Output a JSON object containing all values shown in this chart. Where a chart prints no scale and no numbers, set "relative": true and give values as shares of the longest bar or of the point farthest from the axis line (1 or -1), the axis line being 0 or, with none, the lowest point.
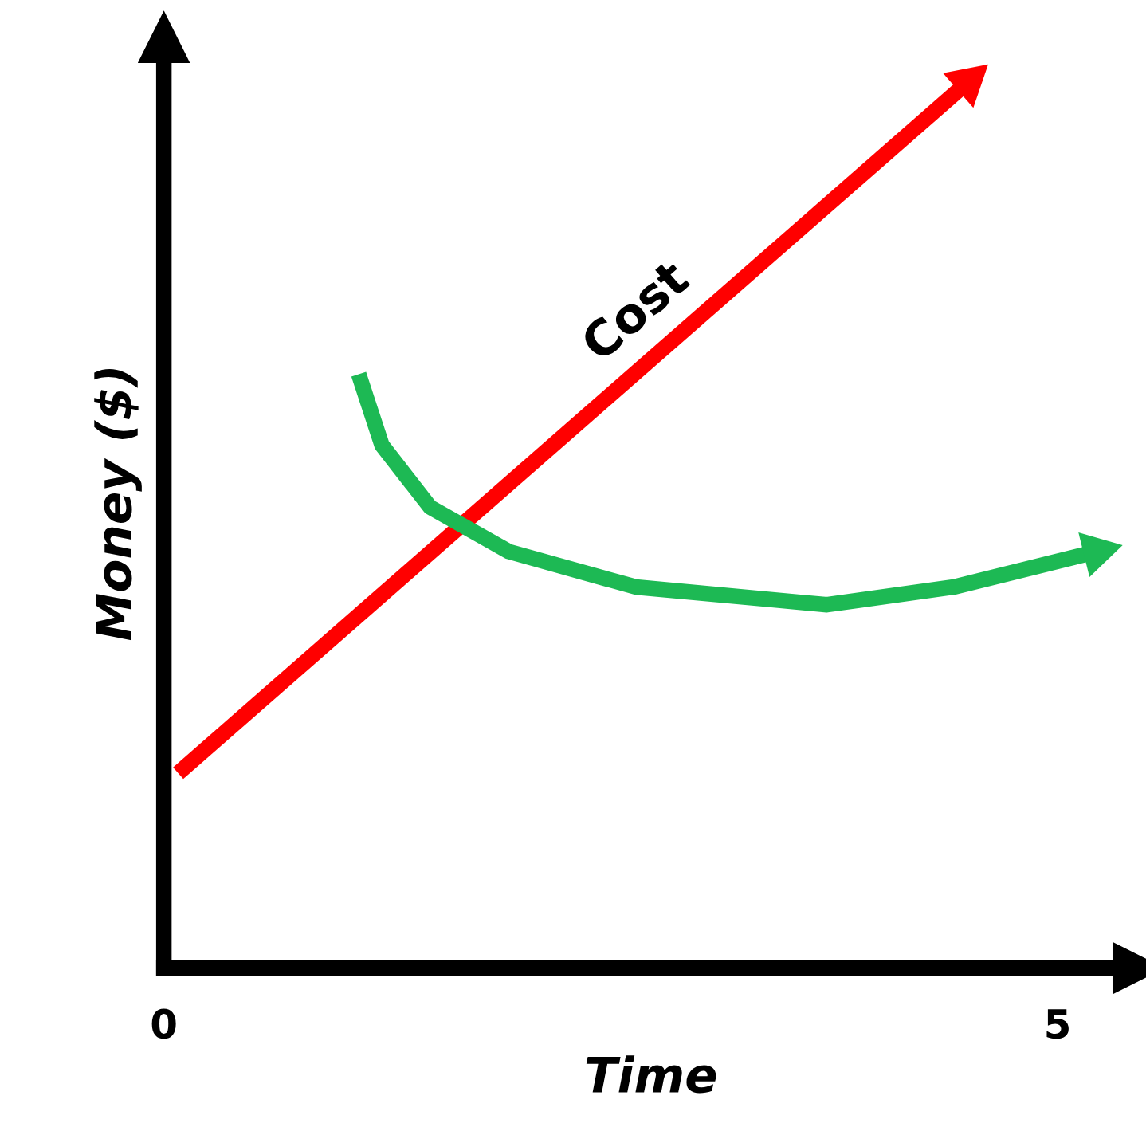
{
  "chart_data": {
    "type": "line",
    "relative": true,
    "xlabel": "Time",
    "ylabel": "Money ($)",
    "xlim": [
      0,
      5.45
    ],
    "xticks": [
      0,
      5
    ],
    "tick_labels": "x",
    "grid": false,
    "legend": false,
    "line_style": "solid",
    "series": [
      {
        "name": "Cost",
        "color": "#ff0000",
        "x": [
          0.08,
          4.5
        ],
        "values": [
          0.22,
          1.0
        ]
      },
      {
        "color": "#1db954",
        "x": [
          1.09,
          1.22,
          1.49,
          1.93,
          2.64,
          3.71,
          4.42,
          5.22
        ],
        "values": [
          0.67,
          0.59,
          0.52,
          0.47,
          0.43,
          0.41,
          0.43,
          0.47
        ]
      }
    ]
  }
}
